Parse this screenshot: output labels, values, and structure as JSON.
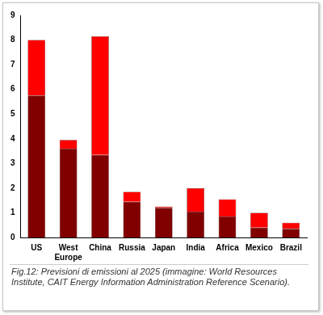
{
  "chart_data": {
    "type": "bar",
    "title": "Fig.12: Previsioni di emissioni al 2025 (immagine: World Resources Institute, CAIT Energy Information Administration Reference Scenario).",
    "categories": [
      "US",
      "West Europe",
      "China",
      "Russia",
      "Japan",
      "India",
      "Africa",
      "Mexico",
      "Brazil"
    ],
    "series": [
      {
        "color": "#800000",
        "values": [
          5.75,
          3.6,
          3.35,
          1.45,
          1.2,
          1.05,
          0.85,
          0.4,
          0.35
        ]
      },
      {
        "color": "#ff0000",
        "values": [
          2.25,
          0.35,
          4.8,
          0.4,
          0.05,
          0.95,
          0.7,
          0.6,
          0.25
        ]
      }
    ],
    "stacked": true,
    "ylim": [
      0,
      9
    ],
    "yticks": [
      0,
      1,
      2,
      3,
      4,
      5,
      6,
      7,
      8,
      9
    ],
    "grid": false
  }
}
